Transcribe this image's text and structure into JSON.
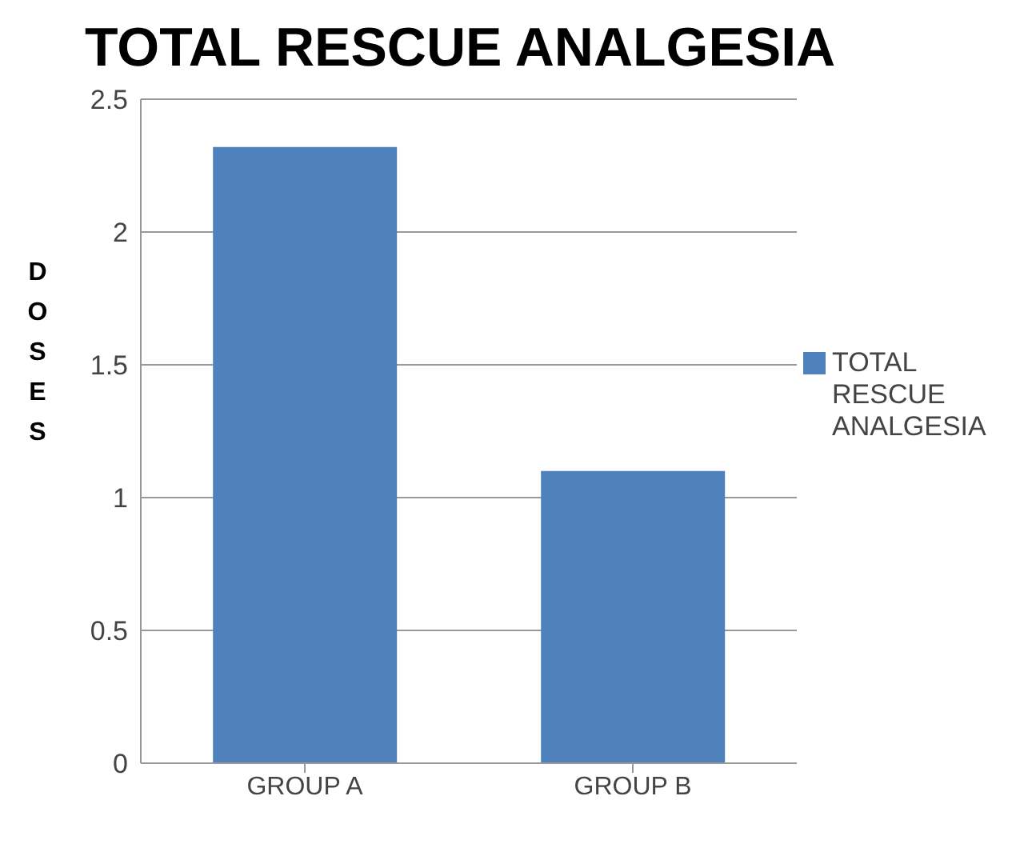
{
  "chart_data": {
    "type": "bar",
    "title": "TOTAL RESCUE ANALGESIA",
    "ylabel": "DOSES",
    "categories": [
      "GROUP A",
      "GROUP B"
    ],
    "series": [
      {
        "name": "TOTAL RESCUE ANALGESIA",
        "color": "#4f81bd",
        "values": [
          2.32,
          1.1
        ]
      }
    ],
    "ylim": [
      0,
      2.5
    ],
    "yticks": [
      0,
      0.5,
      1,
      1.5,
      2,
      2.5
    ],
    "grid": "y",
    "legend": "right"
  }
}
